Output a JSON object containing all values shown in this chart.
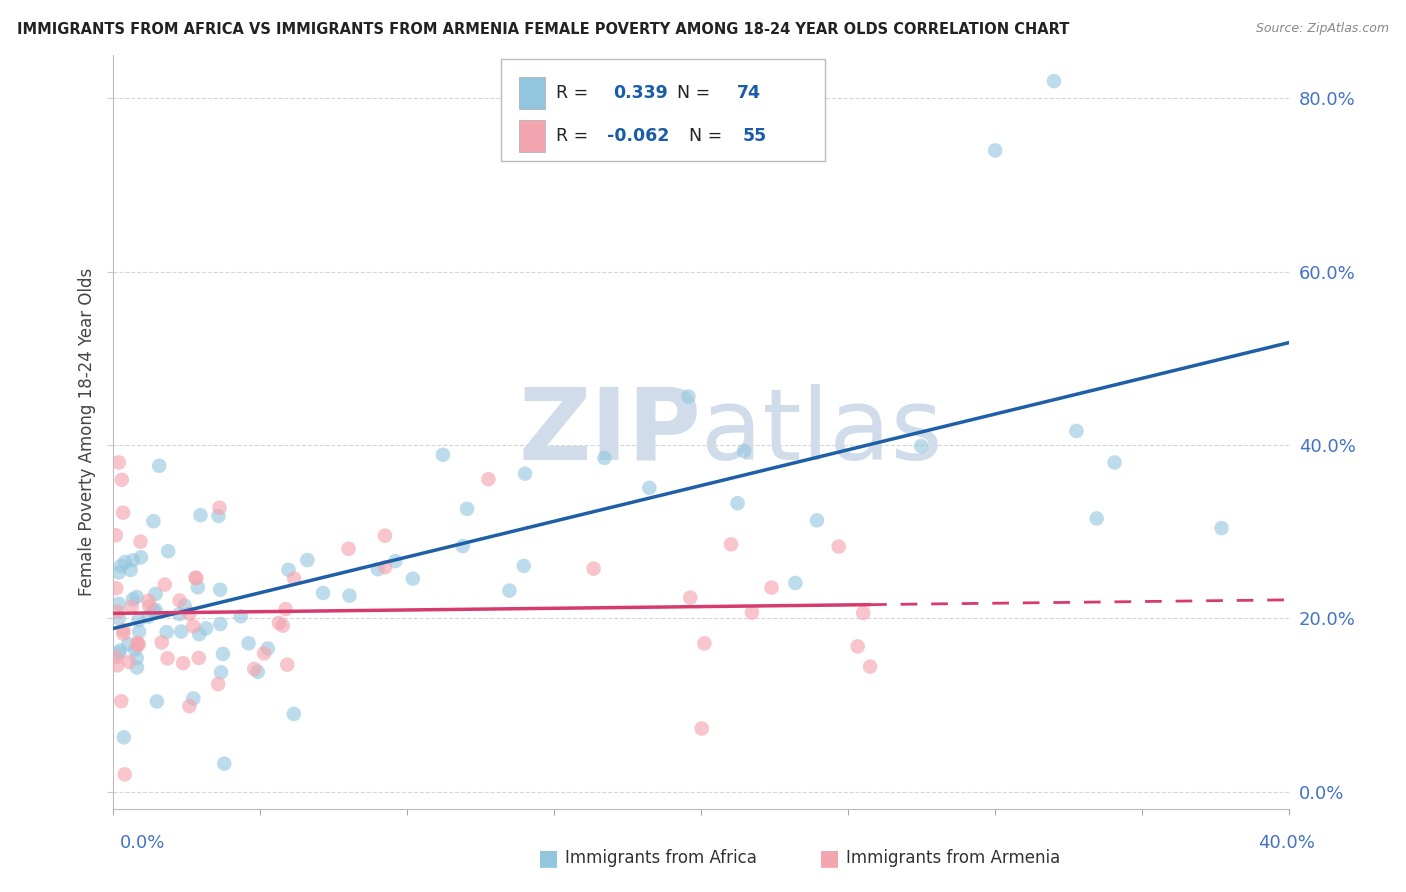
{
  "title": "IMMIGRANTS FROM AFRICA VS IMMIGRANTS FROM ARMENIA FEMALE POVERTY AMONG 18-24 YEAR OLDS CORRELATION CHART",
  "source": "Source: ZipAtlas.com",
  "ylabel": "Female Poverty Among 18-24 Year Olds",
  "ytick_vals": [
    0.0,
    0.2,
    0.4,
    0.6,
    0.8
  ],
  "xlim": [
    0.0,
    0.4
  ],
  "ylim": [
    -0.02,
    0.85
  ],
  "africa_color": "#92c5de",
  "armenia_color": "#f4a6b0",
  "africa_line_color": "#1f5fa6",
  "armenia_line_color": "#d63b6e",
  "r_value_color": "#1a5ca8",
  "n_value_color": "#1a5ca8",
  "watermark_color": "#d0dcea",
  "tick_label_color": "#4472c4",
  "africa_r": "0.339",
  "africa_n": "74",
  "armenia_r": "-0.062",
  "armenia_n": "55",
  "africa_seed": 42,
  "armenia_seed": 99
}
